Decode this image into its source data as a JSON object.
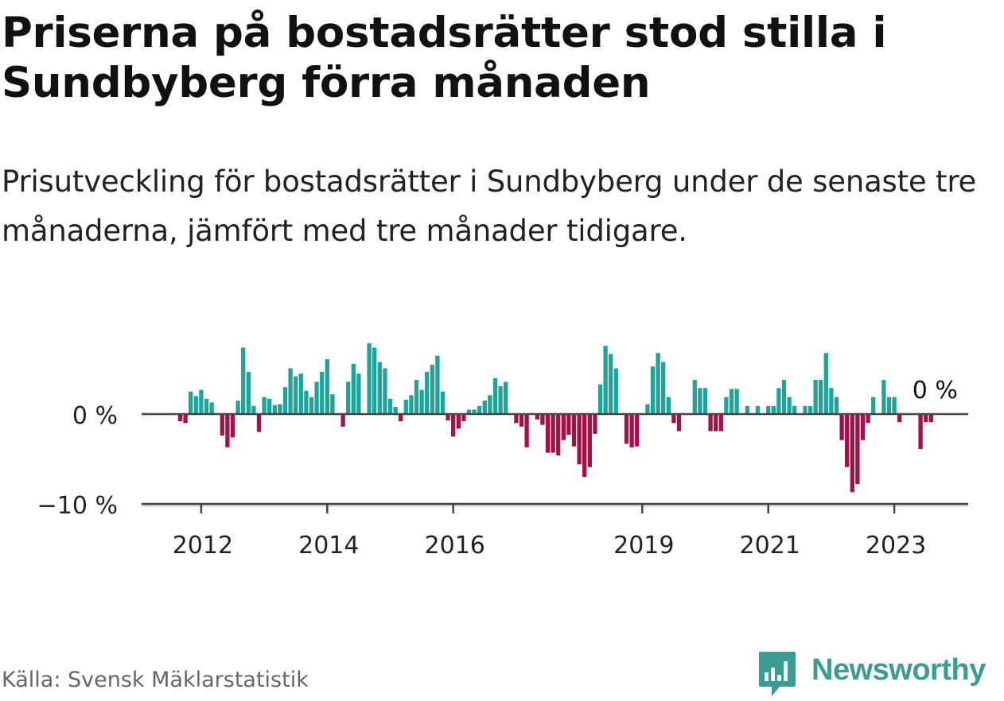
{
  "title": "Priserna på bostadsrätter stod stilla i Sundbyberg förra månaden",
  "subtitle": "Prisutveckling för bostadsrätter i Sundbyberg under de senaste tre månaderna, jämfört med tre månader tidigare.",
  "source": "Källa: Svensk Mäklarstatistik",
  "brand": "Newsworthy",
  "colors": {
    "positive": "#1fa49a",
    "negative": "#a3104a",
    "axis": "#444444",
    "text": "#222222"
  },
  "chart_data": {
    "type": "bar",
    "title": "Prisutveckling för bostadsrätter i Sundbyberg",
    "unit": "%",
    "start": "2011-09",
    "ylim": [
      -10,
      8
    ],
    "yticks": [
      0,
      -10
    ],
    "ytick_labels": [
      "0 %",
      "−10 %"
    ],
    "xtick_labels": [
      "2012",
      "2014",
      "2016",
      "2019",
      "2021",
      "2023"
    ],
    "xtick_dates": [
      "2012-01",
      "2014-01",
      "2016-01",
      "2019-01",
      "2021-01",
      "2023-01"
    ],
    "annotation": "0 %",
    "values": [
      -0.8,
      -1.0,
      2.5,
      2.0,
      2.7,
      1.7,
      1.3,
      0.0,
      -2.4,
      -3.7,
      -2.6,
      1.5,
      7.4,
      4.7,
      0.9,
      -2.0,
      1.9,
      1.7,
      1.0,
      1.1,
      3.0,
      5.1,
      4.2,
      4.5,
      2.6,
      1.9,
      3.6,
      4.7,
      6.1,
      2.2,
      0.0,
      -1.4,
      3.6,
      5.6,
      4.5,
      0.0,
      7.9,
      7.4,
      5.8,
      5.1,
      1.7,
      0.8,
      -0.8,
      1.6,
      2.1,
      3.8,
      2.7,
      4.7,
      5.5,
      6.5,
      2.5,
      -0.7,
      -2.5,
      -1.6,
      -0.8,
      0.5,
      0.5,
      0.9,
      1.5,
      2.1,
      4.0,
      3.1,
      3.6,
      0.0,
      -1.0,
      -1.4,
      -3.7,
      0.0,
      -0.6,
      -1.2,
      -4.3,
      -4.3,
      -4.6,
      -2.9,
      -2.3,
      -3.6,
      -5.6,
      -7.0,
      -5.9,
      -2.2,
      3.3,
      7.6,
      6.7,
      5.1,
      0.0,
      -3.3,
      -3.7,
      -3.6,
      0.0,
      1.1,
      5.3,
      6.8,
      5.8,
      1.9,
      -1.0,
      -1.9,
      0.0,
      0.0,
      3.8,
      2.9,
      2.9,
      -1.9,
      -1.9,
      -1.9,
      1.9,
      2.8,
      2.8,
      0.0,
      0.9,
      0.0,
      0.9,
      0.0,
      0.9,
      0.9,
      2.9,
      3.8,
      1.9,
      0.9,
      0.0,
      0.9,
      0.9,
      3.8,
      3.8,
      6.8,
      2.9,
      1.9,
      -2.9,
      -5.9,
      -8.7,
      -7.8,
      -2.9,
      -1.0,
      1.9,
      0.0,
      3.8,
      1.9,
      1.9,
      -0.9,
      0.0,
      0.0,
      0.0,
      -3.9,
      -0.9,
      -0.9
    ]
  }
}
